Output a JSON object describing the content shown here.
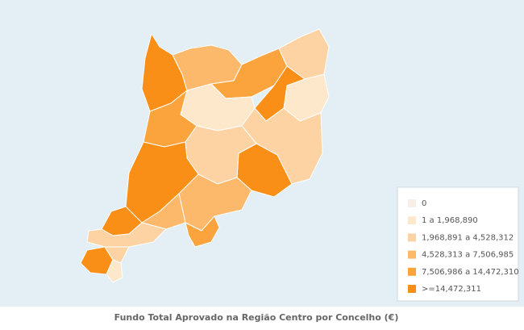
{
  "map": {
    "caption": "Fundo Total Aprovado na Região Centro por Concelho (€)",
    "legend": [
      {
        "label": "0",
        "color": "#f6efe7"
      },
      {
        "label": "1 a 1,968,890",
        "color": "#fde8cc"
      },
      {
        "label": "1,968,891 a 4,528,312",
        "color": "#fdd3a3"
      },
      {
        "label": "4,528,313 a 7,506,985",
        "color": "#fdb96b"
      },
      {
        "label": "7,506,986 a 14,472,310",
        "color": "#fba43e"
      },
      {
        "label": ">=14,472,311",
        "color": "#f98f16"
      }
    ]
  }
}
